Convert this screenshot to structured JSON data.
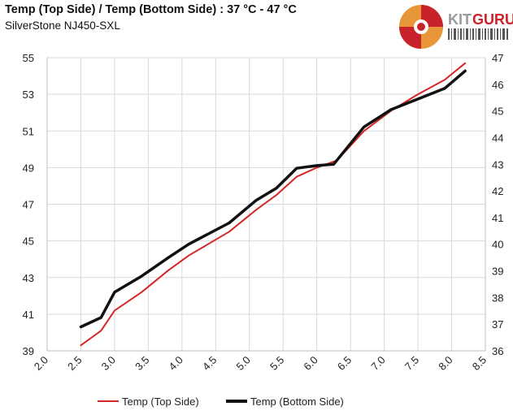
{
  "title": "Temp (Top Side) / Temp (Bottom Side) : 37 °C - 47 °C",
  "subtitle": "SilverStone NJ450-SXL",
  "logo": {
    "brand_kit": "KIT",
    "brand_guru": "GURU",
    "colors": {
      "kit": "#9a9a9a",
      "guru": "#cc2229",
      "swirl_red": "#c8232b",
      "swirl_orange": "#e8963a"
    }
  },
  "chart_data": {
    "type": "line",
    "title": "Temp (Top Side) / Temp (Bottom Side) : 37 °C - 47 °C",
    "subtitle": "SilverStone NJ450-SXL",
    "xlabel": "",
    "ylabel": "",
    "xlim": [
      2.0,
      8.5
    ],
    "ylim_left": [
      39,
      55
    ],
    "ylim_right": [
      36,
      47
    ],
    "x_ticks": [
      "2.0",
      "2.5",
      "3.0",
      "3.5",
      "4.0",
      "4.5",
      "5.0",
      "5.5",
      "6.0",
      "6.5",
      "7.0",
      "7.5",
      "8.0",
      "8.5"
    ],
    "y_left_ticks": [
      "39",
      "41",
      "43",
      "45",
      "47",
      "49",
      "51",
      "53",
      "55"
    ],
    "y_right_ticks": [
      "36",
      "37",
      "38",
      "39",
      "40",
      "41",
      "42",
      "43",
      "44",
      "45",
      "46",
      "47"
    ],
    "grid": true,
    "legend_position": "bottom",
    "series": [
      {
        "name": "Temp (Top Side)",
        "axis": "left",
        "color": "#d62728",
        "x": [
          2.5,
          2.8,
          3.0,
          3.4,
          3.8,
          4.1,
          4.7,
          5.1,
          5.4,
          5.7,
          6.0,
          6.3,
          6.7,
          7.1,
          7.5,
          7.9,
          8.2
        ],
        "y": [
          39.3,
          40.1,
          41.2,
          42.2,
          43.4,
          44.2,
          45.5,
          46.7,
          47.5,
          48.5,
          49.0,
          49.4,
          51.0,
          52.1,
          53.0,
          53.8,
          54.7
        ]
      },
      {
        "name": "Temp (Bottom Side)",
        "axis": "right",
        "color": "#111111",
        "x": [
          2.5,
          2.8,
          3.0,
          3.4,
          3.8,
          4.1,
          4.7,
          5.1,
          5.4,
          5.7,
          6.0,
          6.25,
          6.7,
          7.1,
          7.5,
          7.9,
          8.2
        ],
        "y": [
          36.9,
          37.25,
          38.2,
          38.8,
          39.5,
          40.0,
          40.8,
          41.65,
          42.1,
          42.85,
          42.95,
          43.0,
          44.4,
          45.05,
          45.45,
          45.85,
          46.5
        ]
      }
    ]
  }
}
